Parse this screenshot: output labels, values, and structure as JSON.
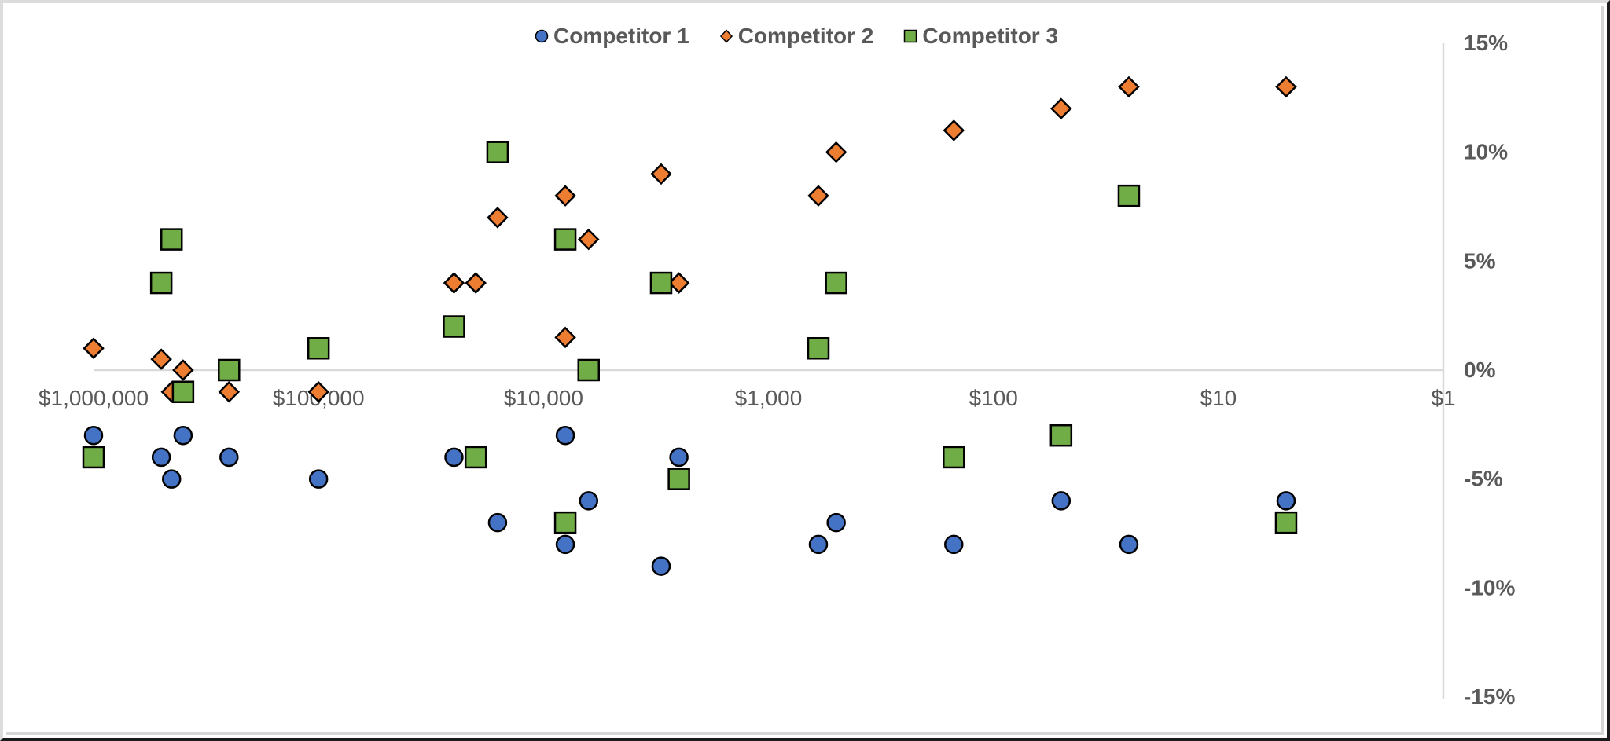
{
  "chart_data": {
    "type": "scatter",
    "title": "",
    "xlabel": "",
    "ylabel": "",
    "x_scale": "log",
    "x_reversed": true,
    "xlim": [
      1000000,
      1
    ],
    "ylim": [
      -0.15,
      0.15
    ],
    "grid": false,
    "legend_position": "top",
    "x_tick_labels": [
      "$1,000,000",
      "$100,000",
      "$10,000",
      "$1,000",
      "$100",
      "$10",
      "$1"
    ],
    "x_ticks": [
      1000000,
      100000,
      10000,
      1000,
      100,
      10,
      1
    ],
    "y_tick_labels": [
      "15%",
      "10%",
      "5%",
      "0%",
      "-5%",
      "-10%",
      "-15%"
    ],
    "y_ticks": [
      0.15,
      0.1,
      0.05,
      0,
      -0.05,
      -0.1,
      -0.15
    ],
    "series": [
      {
        "name": "Competitor 1",
        "marker": "circle",
        "color": "#4472C4",
        "points": [
          [
            1000000,
            -0.03
          ],
          [
            500000,
            -0.04
          ],
          [
            450000,
            -0.05
          ],
          [
            400000,
            -0.03
          ],
          [
            250000,
            -0.04
          ],
          [
            100000,
            -0.05
          ],
          [
            25000,
            -0.04
          ],
          [
            16000,
            -0.07
          ],
          [
            8000,
            -0.03
          ],
          [
            8000,
            -0.08
          ],
          [
            6300,
            -0.06
          ],
          [
            3000,
            -0.09
          ],
          [
            2500,
            -0.04
          ],
          [
            600,
            -0.08
          ],
          [
            500,
            -0.07
          ],
          [
            150,
            -0.08
          ],
          [
            50,
            -0.06
          ],
          [
            25,
            -0.08
          ],
          [
            5,
            -0.06
          ]
        ]
      },
      {
        "name": "Competitor 2",
        "marker": "diamond",
        "color": "#ED7D31",
        "points": [
          [
            1000000,
            0.01
          ],
          [
            500000,
            0.005
          ],
          [
            450000,
            -0.01
          ],
          [
            400000,
            0.0
          ],
          [
            250000,
            -0.01
          ],
          [
            100000,
            -0.01
          ],
          [
            25000,
            0.04
          ],
          [
            20000,
            0.04
          ],
          [
            16000,
            0.07
          ],
          [
            8000,
            0.08
          ],
          [
            8000,
            0.015
          ],
          [
            6300,
            0.06
          ],
          [
            3000,
            0.09
          ],
          [
            2500,
            0.04
          ],
          [
            600,
            0.08
          ],
          [
            500,
            0.1
          ],
          [
            150,
            0.11
          ],
          [
            50,
            0.12
          ],
          [
            25,
            0.13
          ],
          [
            5,
            0.13
          ]
        ]
      },
      {
        "name": "Competitor 3",
        "marker": "square",
        "color": "#70AD47",
        "points": [
          [
            1000000,
            -0.04
          ],
          [
            500000,
            0.04
          ],
          [
            450000,
            0.06
          ],
          [
            400000,
            -0.01
          ],
          [
            250000,
            0.0
          ],
          [
            100000,
            0.01
          ],
          [
            25000,
            0.02
          ],
          [
            20000,
            -0.04
          ],
          [
            16000,
            0.1
          ],
          [
            8000,
            0.06
          ],
          [
            8000,
            -0.07
          ],
          [
            6300,
            0.0
          ],
          [
            3000,
            0.04
          ],
          [
            2500,
            -0.05
          ],
          [
            600,
            0.01
          ],
          [
            500,
            0.04
          ],
          [
            150,
            -0.04
          ],
          [
            50,
            -0.03
          ],
          [
            25,
            0.08
          ],
          [
            5,
            -0.07
          ]
        ]
      }
    ]
  },
  "legend": {
    "items": [
      {
        "label": "Competitor 1",
        "marker": "circle",
        "color": "#4472C4"
      },
      {
        "label": "Competitor 2",
        "marker": "diamond",
        "color": "#ED7D31"
      },
      {
        "label": "Competitor 3",
        "marker": "square",
        "color": "#70AD47"
      }
    ]
  },
  "style": {
    "axis_color": "#D9D9D9",
    "text_color": "#595959",
    "marker_outline": "#000000"
  }
}
